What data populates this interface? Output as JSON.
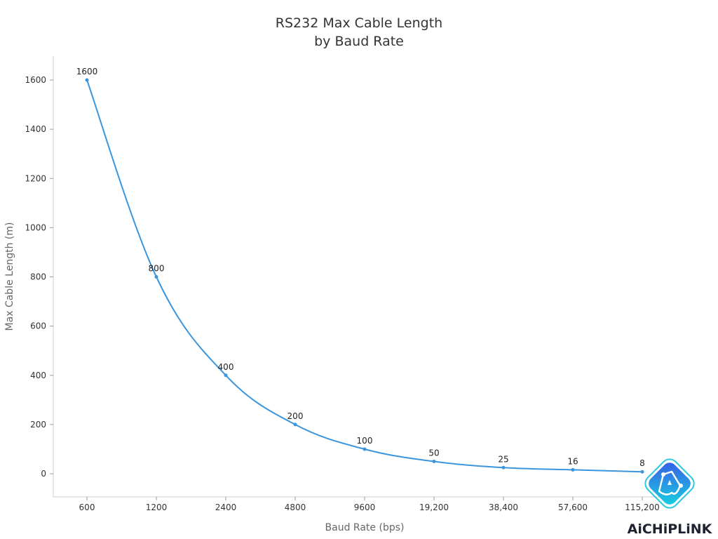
{
  "chart_data": {
    "type": "line",
    "title": [
      "RS232 Max Cable Length",
      "by Baud Rate"
    ],
    "xlabel": "Baud Rate (bps)",
    "ylabel": "Max Cable Length (m)",
    "categories": [
      "600",
      "1200",
      "2400",
      "4800",
      "9600",
      "19,200",
      "38,400",
      "57,600",
      "115,200"
    ],
    "values": [
      1600,
      800,
      400,
      200,
      100,
      50,
      25,
      16,
      8
    ],
    "data_labels": [
      "1600",
      "800",
      "400",
      "200",
      "100",
      "50",
      "25",
      "16",
      "8"
    ],
    "yticks": [
      0,
      200,
      400,
      600,
      800,
      1000,
      1200,
      1400,
      1600
    ],
    "ylim": [
      -94,
      1697
    ],
    "grid": false,
    "line_color": "#3b95dc",
    "smooth": true
  },
  "logo": {
    "text": "AiCHiPLiNK",
    "colors": [
      "#3a5be6",
      "#17d3e0"
    ]
  }
}
